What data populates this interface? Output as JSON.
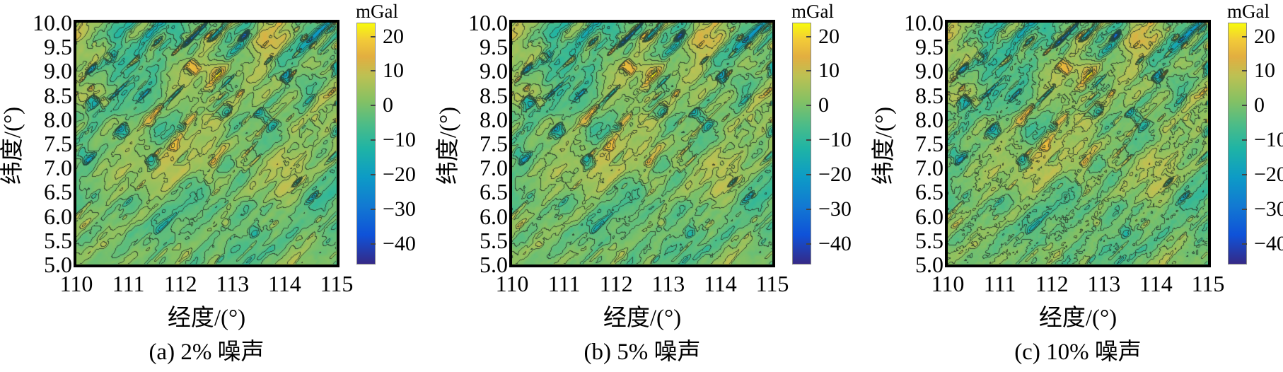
{
  "figure": {
    "y_axis": {
      "title": "纬度/(°)",
      "ticks": [
        "10.0",
        "9.5",
        "9.0",
        "8.5",
        "8.0",
        "7.5",
        "7.0",
        "6.5",
        "6.0",
        "5.5",
        "5.0"
      ]
    },
    "x_axis": {
      "title": "经度/(°)",
      "ticks": [
        "110",
        "111",
        "112",
        "113",
        "114",
        "115"
      ]
    },
    "colorbar": {
      "title": "mGal",
      "tick_labels": [
        "20",
        "10",
        "0",
        "−10",
        "−20",
        "−30",
        "−40"
      ],
      "tick_values": [
        20,
        10,
        0,
        -10,
        -20,
        -30,
        -40
      ],
      "vmin": -46,
      "vmax": 24
    },
    "panels": [
      {
        "caption": "(a) 2% 噪声",
        "noise_percent": 2
      },
      {
        "caption": "(b) 5% 噪声",
        "noise_percent": 5
      },
      {
        "caption": "(c) 10% 噪声",
        "noise_percent": 10
      }
    ],
    "frame_color": "#000000",
    "contour_color": "#233027",
    "contour_interval_mGal": 4,
    "colormap_stops": [
      [
        0.0,
        "#352a87"
      ],
      [
        0.12,
        "#0f52d8"
      ],
      [
        0.24,
        "#1279d2"
      ],
      [
        0.36,
        "#0d9bc6"
      ],
      [
        0.48,
        "#1fb4a5"
      ],
      [
        0.58,
        "#4dbc87"
      ],
      [
        0.68,
        "#86c163"
      ],
      [
        0.78,
        "#bcc153"
      ],
      [
        0.86,
        "#e2ae40"
      ],
      [
        0.93,
        "#f2ca38"
      ],
      [
        1.0,
        "#f8fa0d"
      ]
    ]
  },
  "chart_data": {
    "type": "heatmap",
    "title": "",
    "xlabel": "经度/(°)",
    "ylabel": "纬度/(°)",
    "x_range": [
      110,
      115
    ],
    "y_range": [
      5,
      10
    ],
    "x_ticks": [
      110,
      111,
      112,
      113,
      114,
      115
    ],
    "y_ticks": [
      10.0,
      9.5,
      9.0,
      8.5,
      8.0,
      7.5,
      7.0,
      6.5,
      6.0,
      5.5,
      5.0
    ],
    "value_units": "mGal",
    "value_range": [
      -46,
      24
    ],
    "colorbar_ticks": [
      20,
      10,
      0,
      -10,
      -20,
      -30,
      -40
    ],
    "colormap": "parula",
    "contours": true,
    "contour_interval": 4,
    "panels": [
      {
        "label": "(a) 2% 噪声",
        "noise_percent": 2
      },
      {
        "label": "(b) 5% 噪声",
        "noise_percent": 5
      },
      {
        "label": "(c) 10% 噪声",
        "noise_percent": 10
      }
    ],
    "description": "Three nearly identical contoured gravity-anomaly maps (mostly 0 to -10 mGal green field with localized -20 to -40 mGal blue streaks trending SW-NE, strongest in the upper half, and +5 to +20 mGal orange patches; prominent dark blue streak with orange rim in the top-right corner), differing only by added noise of 2%, 5% and 10%."
  }
}
